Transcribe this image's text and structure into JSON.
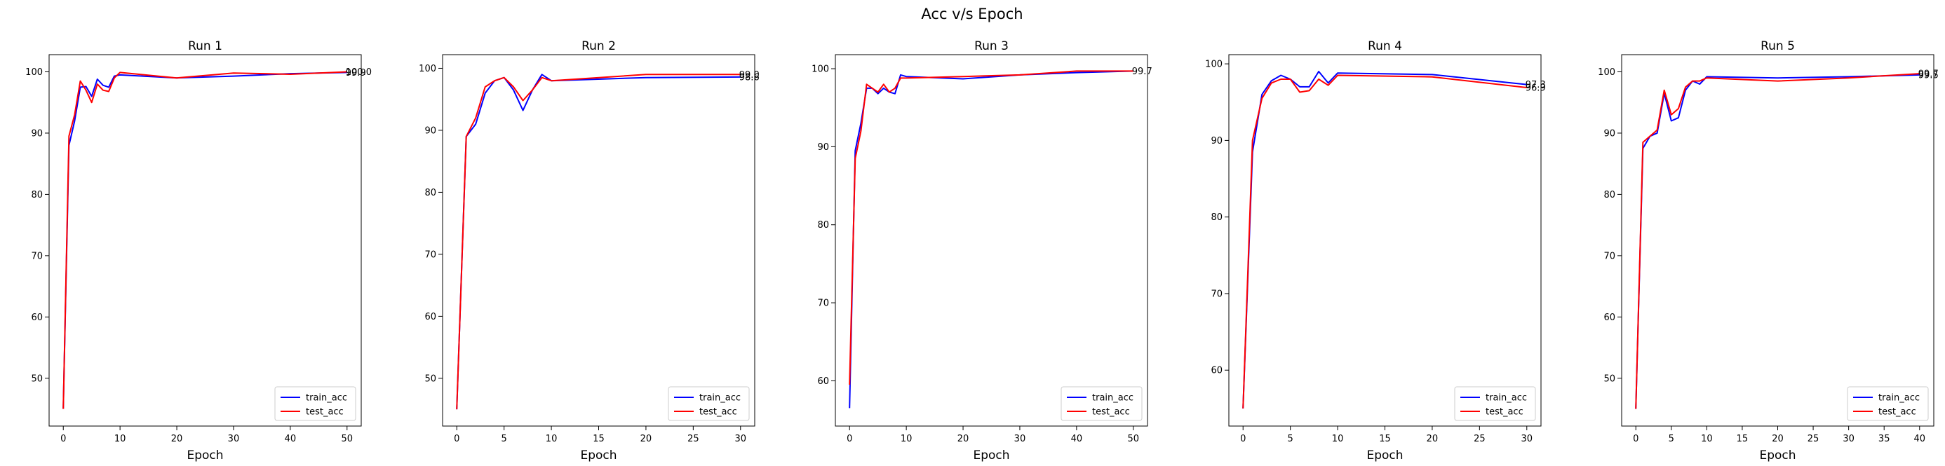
{
  "figure_title": "Acc v/s Epoch",
  "colors": {
    "train": "#0000ff",
    "test": "#ff0000",
    "axis": "#000000",
    "background": "#ffffff"
  },
  "chart_data": [
    {
      "type": "line",
      "title": "Run 1",
      "xlabel": "Epoch",
      "ylabel": "",
      "xlim": [
        -2.5,
        52.5
      ],
      "ylim": [
        42.2,
        102.8
      ],
      "xticks": [
        0,
        10,
        20,
        30,
        40,
        50
      ],
      "yticks": [
        50,
        60,
        70,
        80,
        90,
        100
      ],
      "grid": false,
      "legend": "lower right",
      "end_labels": [
        "99.9",
        "100.0"
      ],
      "series": [
        {
          "name": "train_acc",
          "color": "#0000ff",
          "x": [
            0,
            1,
            2,
            3,
            4,
            5,
            6,
            7,
            8,
            9,
            10,
            20,
            30,
            40,
            50
          ],
          "y": [
            45.0,
            88.0,
            92.0,
            97.5,
            97.6,
            96.0,
            98.8,
            97.8,
            97.5,
            99.3,
            99.5,
            99.0,
            99.3,
            99.7,
            99.9
          ]
        },
        {
          "name": "test_acc",
          "color": "#ff0000",
          "x": [
            0,
            1,
            2,
            3,
            4,
            5,
            6,
            7,
            8,
            9,
            10,
            20,
            30,
            40,
            50
          ],
          "y": [
            45.0,
            89.5,
            93.0,
            98.5,
            97.0,
            95.0,
            98.0,
            97.0,
            96.8,
            99.0,
            99.9,
            99.0,
            99.8,
            99.6,
            100.0
          ]
        }
      ]
    },
    {
      "type": "line",
      "title": "Run 2",
      "xlabel": "Epoch",
      "ylabel": "",
      "xlim": [
        -1.5,
        31.5
      ],
      "ylim": [
        42.3,
        102.2
      ],
      "xticks": [
        0,
        5,
        10,
        15,
        20,
        25,
        30
      ],
      "yticks": [
        50,
        60,
        70,
        80,
        90,
        100
      ],
      "grid": false,
      "legend": "lower right",
      "end_labels": [
        "98.6",
        "99.0"
      ],
      "series": [
        {
          "name": "train_acc",
          "color": "#0000ff",
          "x": [
            0,
            1,
            2,
            3,
            4,
            5,
            6,
            7,
            8,
            9,
            10,
            20,
            30
          ],
          "y": [
            45.0,
            89.0,
            91.0,
            96.0,
            98.0,
            98.5,
            96.5,
            93.2,
            96.5,
            99.0,
            98.0,
            98.5,
            98.6
          ]
        },
        {
          "name": "test_acc",
          "color": "#ff0000",
          "x": [
            0,
            1,
            2,
            3,
            4,
            5,
            6,
            7,
            8,
            9,
            10,
            20,
            30
          ],
          "y": [
            45.0,
            89.0,
            92.0,
            97.0,
            98.0,
            98.5,
            97.0,
            94.8,
            96.5,
            98.5,
            98.0,
            99.0,
            99.0
          ]
        }
      ]
    },
    {
      "type": "line",
      "title": "Run 3",
      "xlabel": "Epoch",
      "ylabel": "",
      "xlim": [
        -2.5,
        52.5
      ],
      "ylim": [
        54.2,
        101.8
      ],
      "xticks": [
        0,
        10,
        20,
        30,
        40,
        50
      ],
      "yticks": [
        60,
        70,
        80,
        90,
        100
      ],
      "grid": false,
      "legend": "lower right",
      "end_labels": [
        "99.7"
      ],
      "series": [
        {
          "name": "train_acc",
          "color": "#0000ff",
          "x": [
            0,
            1,
            2,
            3,
            4,
            5,
            6,
            7,
            8,
            9,
            10,
            20,
            30,
            40,
            50
          ],
          "y": [
            56.5,
            89.5,
            93.0,
            97.5,
            97.5,
            96.8,
            97.5,
            97.0,
            96.8,
            99.2,
            99.0,
            98.7,
            99.2,
            99.5,
            99.7
          ]
        },
        {
          "name": "test_acc",
          "color": "#ff0000",
          "x": [
            0,
            1,
            2,
            3,
            4,
            5,
            6,
            7,
            8,
            9,
            10,
            20,
            30,
            40,
            50
          ],
          "y": [
            59.5,
            88.5,
            92.0,
            98.0,
            97.5,
            97.0,
            98.0,
            97.0,
            97.5,
            98.8,
            98.8,
            99.0,
            99.2,
            99.7,
            99.7
          ]
        }
      ]
    },
    {
      "type": "line",
      "title": "Run 4",
      "xlabel": "Epoch",
      "ylabel": "",
      "xlim": [
        -1.5,
        31.5
      ],
      "ylim": [
        52.7,
        101.2
      ],
      "xticks": [
        0,
        5,
        10,
        15,
        20,
        25,
        30
      ],
      "yticks": [
        60,
        70,
        80,
        90,
        100
      ],
      "grid": false,
      "legend": "lower right",
      "end_labels": [
        "97.3",
        "96.9"
      ],
      "series": [
        {
          "name": "train_acc",
          "color": "#0000ff",
          "x": [
            0,
            1,
            2,
            3,
            4,
            5,
            6,
            7,
            8,
            9,
            10,
            20,
            30
          ],
          "y": [
            55.0,
            88.5,
            96.0,
            97.8,
            98.5,
            98.0,
            97.0,
            97.0,
            99.0,
            97.5,
            98.8,
            98.6,
            97.3
          ]
        },
        {
          "name": "test_acc",
          "color": "#ff0000",
          "x": [
            0,
            1,
            2,
            3,
            4,
            5,
            6,
            7,
            8,
            9,
            10,
            20,
            30
          ],
          "y": [
            55.0,
            90.0,
            95.5,
            97.5,
            98.0,
            98.0,
            96.3,
            96.5,
            98.0,
            97.2,
            98.5,
            98.3,
            96.9
          ]
        }
      ]
    },
    {
      "type": "line",
      "title": "Run 5",
      "xlabel": "Epoch",
      "ylabel": "",
      "xlim": [
        -2.0,
        42.0
      ],
      "ylim": [
        42.2,
        102.8
      ],
      "xticks": [
        0,
        5,
        10,
        15,
        20,
        25,
        30,
        35,
        40
      ],
      "yticks": [
        50,
        60,
        70,
        80,
        90,
        100
      ],
      "grid": false,
      "legend": "lower right",
      "end_labels": [
        "99.5",
        "99.7"
      ],
      "series": [
        {
          "name": "train_acc",
          "color": "#0000ff",
          "x": [
            0,
            1,
            2,
            3,
            4,
            5,
            6,
            7,
            8,
            9,
            10,
            20,
            30,
            40
          ],
          "y": [
            45.0,
            87.5,
            89.5,
            90.0,
            96.5,
            92.0,
            92.5,
            97.0,
            98.5,
            98.0,
            99.2,
            99.0,
            99.2,
            99.5
          ]
        },
        {
          "name": "test_acc",
          "color": "#ff0000",
          "x": [
            0,
            1,
            2,
            3,
            4,
            5,
            6,
            7,
            8,
            9,
            10,
            20,
            30,
            40
          ],
          "y": [
            45.0,
            88.5,
            89.5,
            90.5,
            97.0,
            93.0,
            94.0,
            97.5,
            98.5,
            98.5,
            99.0,
            98.5,
            99.0,
            99.7
          ]
        }
      ]
    }
  ]
}
